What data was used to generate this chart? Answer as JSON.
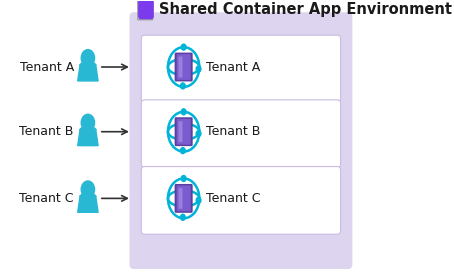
{
  "title": "Shared Container App Environment",
  "tenants": [
    "Tenant A",
    "Tenant B",
    "Tenant C"
  ],
  "bg_color": "#ffffff",
  "shared_env_bg": "#ddd5f0",
  "box_bg": "#ffffff",
  "box_border": "#c8bce0",
  "shared_env_border": "#c0b0e0",
  "arrow_color": "#333333",
  "text_color": "#1a1a1a",
  "title_color": "#1a1a1a",
  "person_color": "#29b8d4",
  "icon_purple_dark": "#5a3d9e",
  "icon_purple_mid": "#7b5ccf",
  "icon_purple_light": "#9b7fdf",
  "icon_cyan": "#00b4d8",
  "header_sq_border": "#a0a0a0",
  "header_sq_fill": "#e8e8e8",
  "header_blob": "#7c3aed",
  "font_size_title": 10.5,
  "font_size_label": 9,
  "font_size_tenant": 9,
  "figw": 4.54,
  "figh": 2.76,
  "dpi": 100
}
